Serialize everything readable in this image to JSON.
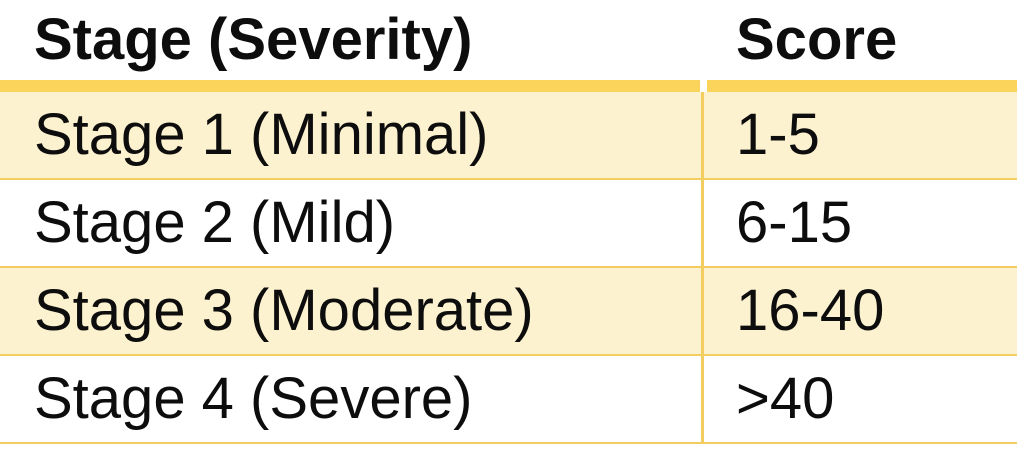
{
  "table": {
    "columns": [
      {
        "label": "Stage (Severity)"
      },
      {
        "label": "Score"
      }
    ],
    "rows": [
      {
        "stage": "Stage 1 (Minimal)",
        "score": "1-5",
        "highlighted": true
      },
      {
        "stage": "Stage 2 (Mild)",
        "score": "6-15",
        "highlighted": false
      },
      {
        "stage": "Stage 3 (Moderate)",
        "score": "16-40",
        "highlighted": true
      },
      {
        "stage": "Stage 4 (Severe)",
        "score": ">40",
        "highlighted": false
      }
    ],
    "colors": {
      "accent_gold": "#FBD45C",
      "separator": "#F4CD60",
      "row_highlight": "#FDF2CF",
      "text": "#0D0D0D"
    }
  }
}
